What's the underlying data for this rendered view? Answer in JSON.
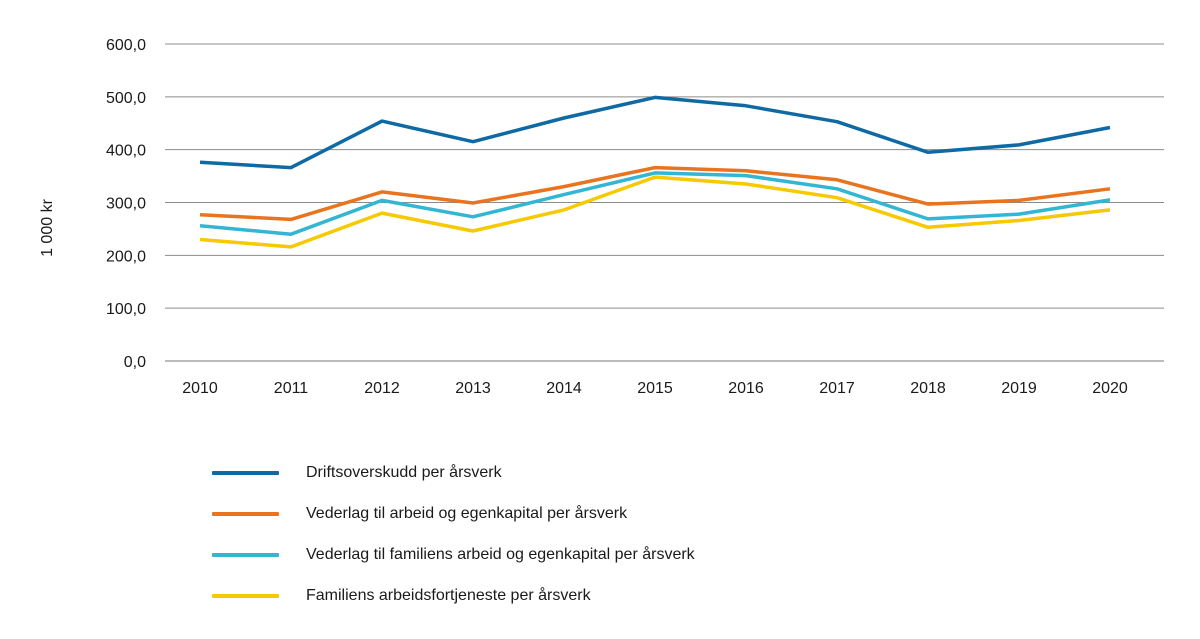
{
  "chart_data": {
    "type": "line",
    "title": "",
    "xlabel": "",
    "ylabel": "1 000 kr",
    "categories": [
      "2010",
      "2011",
      "2012",
      "2013",
      "2014",
      "2015",
      "2016",
      "2017",
      "2018",
      "2019",
      "2020"
    ],
    "ylim": [
      0,
      600
    ],
    "yticks": [
      0,
      100,
      200,
      300,
      400,
      500,
      600
    ],
    "ytick_labels": [
      "0,0",
      "100,0",
      "200,0",
      "300,0",
      "400,0",
      "500,0",
      "600,0"
    ],
    "grid": true,
    "legend_position": "bottom",
    "series": [
      {
        "name": "Driftsoverskudd per årsverk",
        "color": "#0f6aa3",
        "values": [
          376,
          366,
          454,
          415,
          460,
          499,
          483,
          453,
          395,
          409,
          442
        ]
      },
      {
        "name": "Vederlag til arbeid og egenkapital per årsverk",
        "color": "#e9741f",
        "values": [
          277,
          268,
          320,
          299,
          330,
          366,
          360,
          343,
          297,
          304,
          326
        ]
      },
      {
        "name": "Vederlag til familiens arbeid og egenkapital per årsverk",
        "color": "#33b6d3",
        "values": [
          256,
          240,
          304,
          273,
          315,
          356,
          351,
          326,
          269,
          278,
          305
        ]
      },
      {
        "name": "Familiens arbeidsfortjeneste per årsverk",
        "color": "#f6c900",
        "values": [
          230,
          216,
          280,
          246,
          286,
          348,
          335,
          309,
          253,
          266,
          286
        ]
      }
    ]
  }
}
